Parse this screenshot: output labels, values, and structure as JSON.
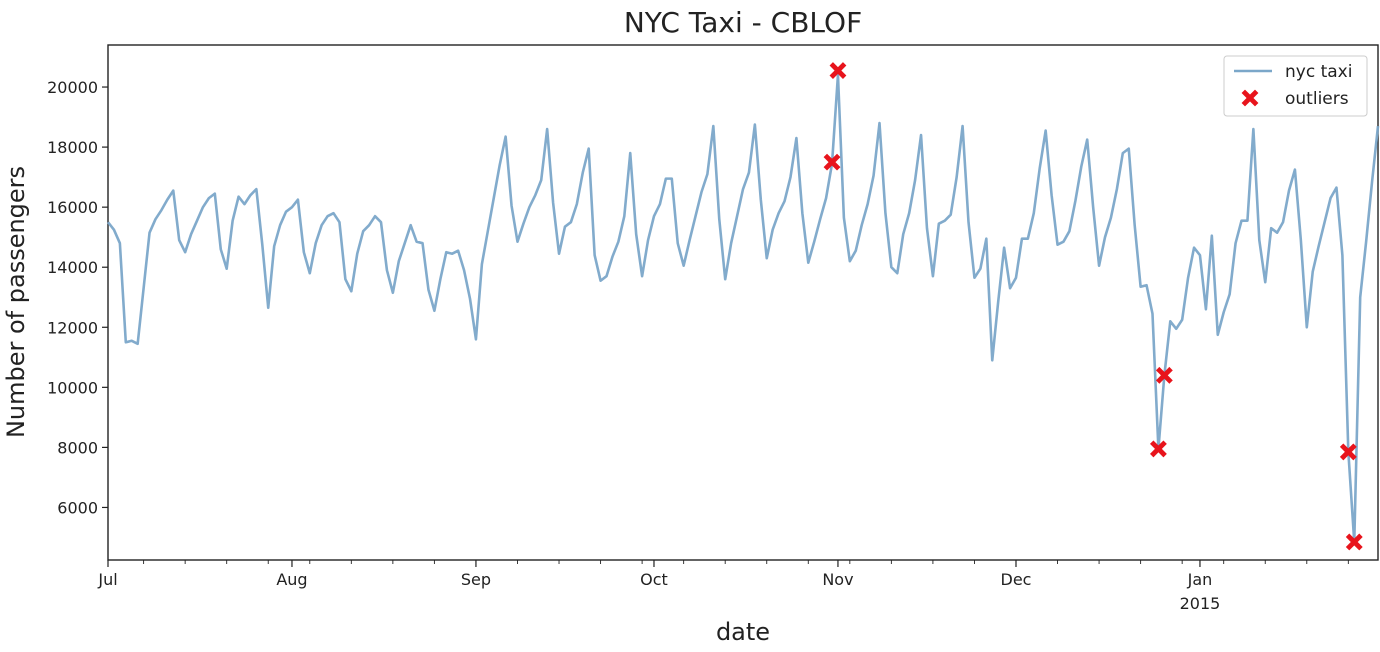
{
  "chart_data": {
    "type": "line",
    "title": "NYC Taxi - CBLOF",
    "xlabel": "date",
    "ylabel": "Number of passengers",
    "xlim": [
      "2014-07-01",
      "2015-01-31"
    ],
    "ylim": [
      4250,
      21400
    ],
    "grid": false,
    "legend_position": "top-right",
    "x_ticks": [
      {
        "date": "2014-07-01",
        "label": "Jul"
      },
      {
        "date": "2014-08-01",
        "label": "Aug"
      },
      {
        "date": "2014-09-01",
        "label": "Sep"
      },
      {
        "date": "2014-10-01",
        "label": "Oct"
      },
      {
        "date": "2014-11-01",
        "label": "Nov"
      },
      {
        "date": "2014-12-01",
        "label": "Dec"
      },
      {
        "date": "2015-01-01",
        "label": "Jan",
        "sublabel": "2015"
      }
    ],
    "y_ticks": [
      6000,
      8000,
      10000,
      12000,
      14000,
      16000,
      18000,
      20000
    ],
    "series": [
      {
        "name": "nyc taxi",
        "color": "#7ba7c9",
        "start": "2014-07-01",
        "y": [
          15500,
          15250,
          14800,
          11500,
          11550,
          11450,
          13300,
          15150,
          15600,
          15900,
          16250,
          16550,
          14900,
          14500,
          15100,
          15550,
          16000,
          16300,
          16450,
          14600,
          13950,
          15550,
          16350,
          16100,
          16400,
          16600,
          14750,
          12650,
          14700,
          15400,
          15850,
          16000,
          16250,
          14500,
          13800,
          14800,
          15400,
          15700,
          15800,
          15500,
          13600,
          13200,
          14450,
          15200,
          15400,
          15700,
          15500,
          13900,
          13150,
          14200,
          14800,
          15400,
          14850,
          14800,
          13250,
          12550,
          13600,
          14500,
          14450,
          14550,
          13900,
          12950,
          11600,
          14100,
          15200,
          16300,
          17400,
          18350,
          16050,
          14850,
          15450,
          16000,
          16400,
          16900,
          18600,
          16150,
          14450,
          15350,
          15500,
          16100,
          17150,
          17950,
          14400,
          13550,
          13700,
          14350,
          14850,
          15700,
          17800,
          15100,
          13700,
          14900,
          15700,
          16100,
          16950,
          16950,
          14800,
          14050,
          14900,
          15700,
          16500,
          17100,
          18700,
          15600,
          13600,
          14800,
          15700,
          16600,
          17150,
          18750,
          16250,
          14300,
          15250,
          15800,
          16200,
          17000,
          18300,
          15800,
          14150,
          14850,
          15600,
          16300,
          17450,
          20400,
          15650,
          14200,
          14550,
          15400,
          16100,
          17050,
          18800,
          15800,
          14000,
          13800,
          15100,
          15800,
          16900,
          18400,
          15300,
          13700,
          15450,
          15550,
          15750,
          17000,
          18700,
          15500,
          13650,
          13950,
          14950,
          10900,
          12850,
          14650,
          13300,
          13650,
          14950,
          14950,
          15800,
          17300,
          18550,
          16400,
          14750,
          14850,
          15200,
          16200,
          17350,
          18250,
          16000,
          14050,
          15000,
          15650,
          16600,
          17800,
          17950,
          15400,
          13350,
          13400,
          12450,
          7950,
          10400,
          12200,
          11950,
          12250,
          13650,
          14650,
          14400,
          12600,
          15050,
          11750,
          12500,
          13100,
          14800,
          15550,
          15550,
          18600,
          14900,
          13500,
          15300,
          15150,
          15500,
          16550,
          17250,
          14900,
          12000,
          13850,
          14700,
          15500,
          16300,
          16650,
          14400,
          7850,
          4850,
          13000,
          14850,
          16850,
          18700
        ]
      }
    ],
    "outliers": {
      "name": "outliers",
      "color": "#e8141c",
      "points": [
        {
          "x": "2014-10-31",
          "y": 17500
        },
        {
          "x": "2014-11-01",
          "y": 20550
        },
        {
          "x": "2014-12-25",
          "y": 7950
        },
        {
          "x": "2014-12-26",
          "y": 10400
        },
        {
          "x": "2015-01-26",
          "y": 7850
        },
        {
          "x": "2015-01-27",
          "y": 4850
        }
      ]
    }
  }
}
